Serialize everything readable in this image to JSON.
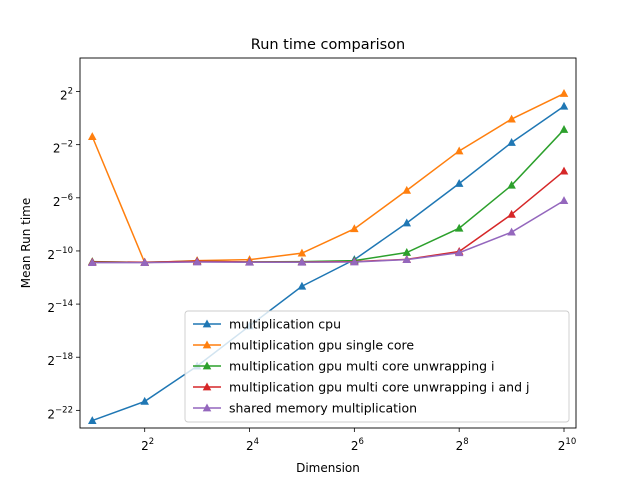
{
  "chart_data": {
    "type": "line",
    "title": "Run time comparison",
    "xlabel": "Dimension",
    "ylabel": "Mean Run time",
    "x_scale": "log2",
    "y_scale": "log2",
    "x": [
      2,
      4,
      8,
      16,
      32,
      64,
      128,
      256,
      512,
      1024
    ],
    "xlim": [
      1.7,
      1200
    ],
    "ylim": [
      9.5e-08,
      23
    ],
    "x_ticks": [
      {
        "value": 4,
        "base": "2",
        "exp": "2"
      },
      {
        "value": 16,
        "base": "2",
        "exp": "4"
      },
      {
        "value": 64,
        "base": "2",
        "exp": "6"
      },
      {
        "value": 256,
        "base": "2",
        "exp": "8"
      },
      {
        "value": 1024,
        "base": "2",
        "exp": "10"
      }
    ],
    "y_ticks": [
      {
        "value": 4,
        "base": "2",
        "exp": "2"
      },
      {
        "value": 0.25,
        "base": "2",
        "exp": "−2"
      },
      {
        "value": 0.015625,
        "base": "2",
        "exp": "−6"
      },
      {
        "value": 0.0009765625,
        "base": "2",
        "exp": "−10"
      },
      {
        "value": 6.103515625e-05,
        "base": "2",
        "exp": "−14"
      },
      {
        "value": 3.814697265625e-06,
        "base": "2",
        "exp": "−18"
      },
      {
        "value": 2.384185791015625e-07,
        "base": "2",
        "exp": "−22"
      }
    ],
    "grid": false,
    "legend_position": "lower-right",
    "series": [
      {
        "name": "multiplication cpu",
        "color": "#1f77b4",
        "marker": "triangle-up",
        "values": [
          1.4e-07,
          3.8e-07,
          2.4e-06,
          1.95e-05,
          0.000155,
          0.00062,
          0.0042,
          0.033,
          0.28,
          1.85
        ]
      },
      {
        "name": "multiplication gpu single core",
        "color": "#ff7f0e",
        "marker": "triangle-up",
        "values": [
          0.38,
          0.00053,
          0.00059,
          0.00062,
          0.00087,
          0.0031,
          0.023,
          0.18,
          0.95,
          3.6
        ]
      },
      {
        "name": "multiplication gpu multi core unwrapping i",
        "color": "#2ca02c",
        "marker": "triangle-up",
        "values": [
          0.00056,
          0.00054,
          0.00057,
          0.00055,
          0.00056,
          0.00059,
          0.0009,
          0.0032,
          0.03,
          0.55
        ]
      },
      {
        "name": "multiplication gpu multi core unwrapping i and j",
        "color": "#d62728",
        "marker": "triangle-up",
        "values": [
          0.00055,
          0.00054,
          0.00057,
          0.00055,
          0.00055,
          0.00056,
          0.00063,
          0.00095,
          0.0066,
          0.063
        ]
      },
      {
        "name": "shared memory multiplication",
        "color": "#9467bd",
        "marker": "triangle-up",
        "values": [
          0.00053,
          0.00053,
          0.00055,
          0.00054,
          0.00054,
          0.00055,
          0.00062,
          0.00089,
          0.0026,
          0.0135
        ]
      }
    ]
  }
}
